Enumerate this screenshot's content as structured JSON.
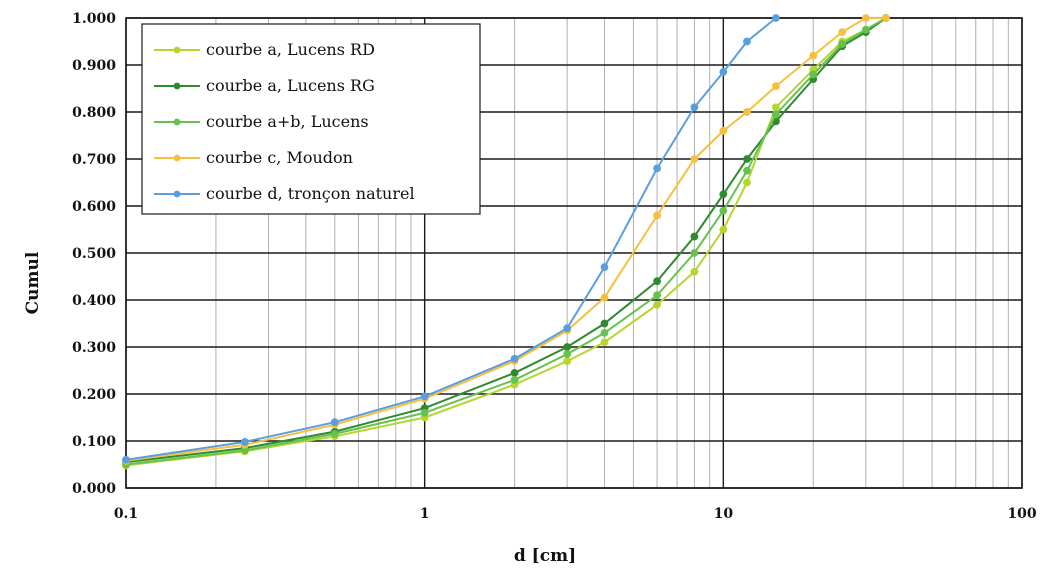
{
  "chart_data": {
    "type": "line",
    "title": "",
    "xlabel": "d [cm]",
    "ylabel": "Cumul",
    "xscale": "log",
    "xlim": [
      0.1,
      100
    ],
    "ylim": [
      0,
      1
    ],
    "x_ticks": [
      {
        "value": 0.1,
        "label": "0.1"
      },
      {
        "value": 1,
        "label": "1"
      },
      {
        "value": 10,
        "label": "10"
      },
      {
        "value": 100,
        "label": "100"
      }
    ],
    "y_ticks": [
      {
        "value": 0.0,
        "label": "0.000"
      },
      {
        "value": 0.1,
        "label": "0.100"
      },
      {
        "value": 0.2,
        "label": "0.200"
      },
      {
        "value": 0.3,
        "label": "0.300"
      },
      {
        "value": 0.4,
        "label": "0.400"
      },
      {
        "value": 0.5,
        "label": "0.500"
      },
      {
        "value": 0.6,
        "label": "0.600"
      },
      {
        "value": 0.7,
        "label": "0.700"
      },
      {
        "value": 0.8,
        "label": "0.800"
      },
      {
        "value": 0.9,
        "label": "0.900"
      },
      {
        "value": 1.0,
        "label": "1.000"
      }
    ],
    "grid": true,
    "legend_position": "top-left",
    "series": [
      {
        "name": "courbe a, Lucens RD",
        "color": "#b5d630",
        "points": [
          [
            0.1,
            0.048
          ],
          [
            0.25,
            0.078
          ],
          [
            0.5,
            0.11
          ],
          [
            1,
            0.15
          ],
          [
            2,
            0.22
          ],
          [
            3,
            0.27
          ],
          [
            4,
            0.31
          ],
          [
            6,
            0.39
          ],
          [
            8,
            0.46
          ],
          [
            10,
            0.55
          ],
          [
            12,
            0.65
          ],
          [
            15,
            0.81
          ],
          [
            20,
            0.89
          ],
          [
            25,
            0.95
          ],
          [
            30,
            0.975
          ],
          [
            35,
            1.0
          ]
        ]
      },
      {
        "name": "courbe a, Lucens RG",
        "color": "#2e8b2e",
        "points": [
          [
            0.1,
            0.055
          ],
          [
            0.25,
            0.085
          ],
          [
            0.5,
            0.12
          ],
          [
            1,
            0.17
          ],
          [
            2,
            0.245
          ],
          [
            3,
            0.3
          ],
          [
            4,
            0.35
          ],
          [
            6,
            0.44
          ],
          [
            8,
            0.535
          ],
          [
            10,
            0.625
          ],
          [
            12,
            0.7
          ],
          [
            15,
            0.78
          ],
          [
            20,
            0.87
          ],
          [
            25,
            0.94
          ],
          [
            30,
            0.97
          ],
          [
            35,
            1.0
          ]
        ]
      },
      {
        "name": "courbe a+b, Lucens",
        "color": "#66c24d",
        "points": [
          [
            0.1,
            0.05
          ],
          [
            0.25,
            0.08
          ],
          [
            0.5,
            0.115
          ],
          [
            1,
            0.16
          ],
          [
            2,
            0.23
          ],
          [
            3,
            0.285
          ],
          [
            4,
            0.33
          ],
          [
            6,
            0.41
          ],
          [
            8,
            0.5
          ],
          [
            10,
            0.59
          ],
          [
            12,
            0.675
          ],
          [
            15,
            0.795
          ],
          [
            20,
            0.88
          ],
          [
            25,
            0.945
          ],
          [
            30,
            0.975
          ],
          [
            35,
            1.0
          ]
        ]
      },
      {
        "name": "courbe c, Moudon",
        "color": "#f5c040",
        "points": [
          [
            0.1,
            0.058
          ],
          [
            0.25,
            0.092
          ],
          [
            0.5,
            0.135
          ],
          [
            1,
            0.19
          ],
          [
            2,
            0.27
          ],
          [
            3,
            0.335
          ],
          [
            4,
            0.405
          ],
          [
            6,
            0.58
          ],
          [
            8,
            0.7
          ],
          [
            10,
            0.76
          ],
          [
            12,
            0.8
          ],
          [
            15,
            0.855
          ],
          [
            20,
            0.92
          ],
          [
            25,
            0.97
          ],
          [
            30,
            1.0
          ],
          [
            35,
            1.0
          ]
        ]
      },
      {
        "name": "courbe d, tronçon naturel",
        "color": "#5b9ee0",
        "points": [
          [
            0.1,
            0.06
          ],
          [
            0.25,
            0.098
          ],
          [
            0.5,
            0.14
          ],
          [
            1,
            0.195
          ],
          [
            2,
            0.275
          ],
          [
            3,
            0.34
          ],
          [
            4,
            0.47
          ],
          [
            6,
            0.68
          ],
          [
            8,
            0.81
          ],
          [
            10,
            0.885
          ],
          [
            12,
            0.95
          ],
          [
            15,
            1.0
          ]
        ]
      }
    ]
  }
}
